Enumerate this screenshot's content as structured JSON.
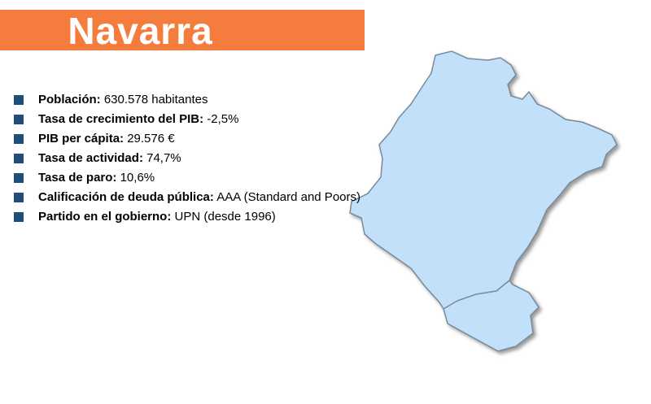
{
  "title": "Navarra",
  "facts": [
    {
      "label": "Población:",
      "value": "630.578 habitantes"
    },
    {
      "label": "Tasa de crecimiento del PIB:",
      "value": "-2,5%"
    },
    {
      "label": "PIB per cápita:",
      "value": "29.576 €"
    },
    {
      "label": "Tasa de actividad:",
      "value": "74,7%"
    },
    {
      "label": "Tasa de paro:",
      "value": "10,6%"
    },
    {
      "label": "Calificación de deuda pública:",
      "value": "AAA (Standard and Poors)"
    },
    {
      "label": "Partido en el gobierno:",
      "value": "UPN (desde 1996)"
    }
  ]
}
